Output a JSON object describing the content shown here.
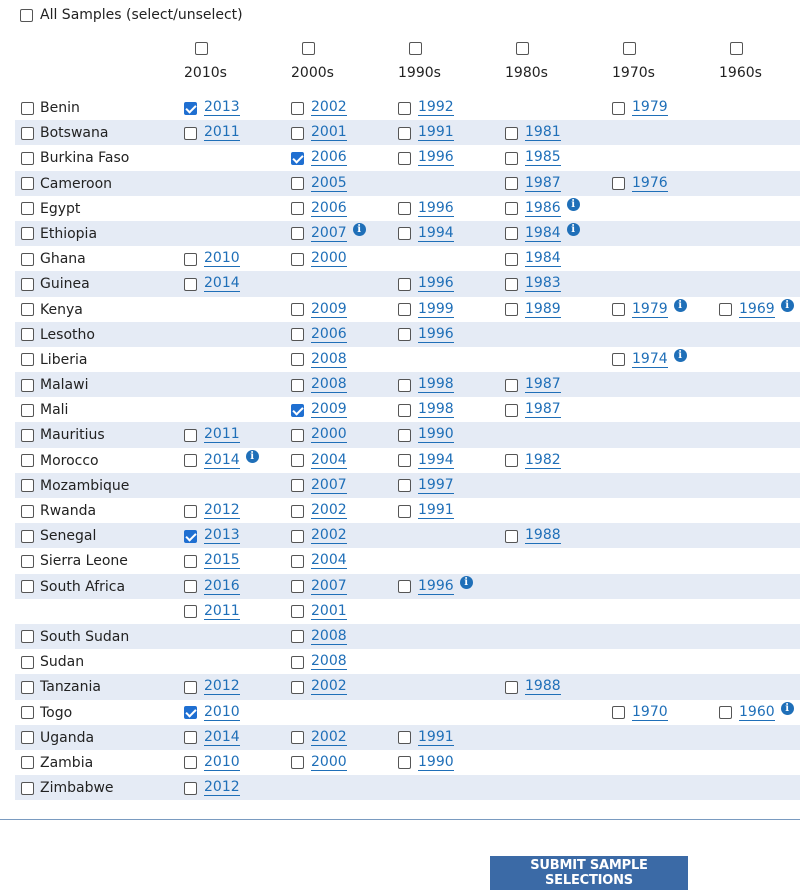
{
  "all_samples_label": "All Samples (select/unselect)",
  "decades": [
    "2010s",
    "2000s",
    "1990s",
    "1980s",
    "1970s",
    "1960s"
  ],
  "rows": [
    {
      "country": "Benin",
      "cells": [
        {
          "y": "2013",
          "c": true
        },
        {
          "y": "2002"
        },
        {
          "y": "1992"
        },
        null,
        {
          "y": "1979"
        },
        null
      ]
    },
    {
      "country": "Botswana",
      "cells": [
        {
          "y": "2011"
        },
        {
          "y": "2001"
        },
        {
          "y": "1991"
        },
        {
          "y": "1981"
        },
        null,
        null
      ]
    },
    {
      "country": "Burkina Faso",
      "cells": [
        null,
        {
          "y": "2006",
          "c": true
        },
        {
          "y": "1996"
        },
        {
          "y": "1985"
        },
        null,
        null
      ]
    },
    {
      "country": "Cameroon",
      "cells": [
        null,
        {
          "y": "2005"
        },
        null,
        {
          "y": "1987"
        },
        {
          "y": "1976"
        },
        null
      ]
    },
    {
      "country": "Egypt",
      "cells": [
        null,
        {
          "y": "2006"
        },
        {
          "y": "1996"
        },
        {
          "y": "1986",
          "i": true
        },
        null,
        null
      ]
    },
    {
      "country": "Ethiopia",
      "cells": [
        null,
        {
          "y": "2007",
          "i": true
        },
        {
          "y": "1994"
        },
        {
          "y": "1984",
          "i": true
        },
        null,
        null
      ]
    },
    {
      "country": "Ghana",
      "cells": [
        {
          "y": "2010"
        },
        {
          "y": "2000"
        },
        null,
        {
          "y": "1984"
        },
        null,
        null
      ]
    },
    {
      "country": "Guinea",
      "cells": [
        {
          "y": "2014"
        },
        null,
        {
          "y": "1996"
        },
        {
          "y": "1983"
        },
        null,
        null
      ]
    },
    {
      "country": "Kenya",
      "cells": [
        null,
        {
          "y": "2009"
        },
        {
          "y": "1999"
        },
        {
          "y": "1989"
        },
        {
          "y": "1979",
          "i": true
        },
        {
          "y": "1969",
          "i": true
        }
      ]
    },
    {
      "country": "Lesotho",
      "cells": [
        null,
        {
          "y": "2006"
        },
        {
          "y": "1996"
        },
        null,
        null,
        null
      ]
    },
    {
      "country": "Liberia",
      "cells": [
        null,
        {
          "y": "2008"
        },
        null,
        null,
        {
          "y": "1974",
          "i": true
        },
        null
      ]
    },
    {
      "country": "Malawi",
      "cells": [
        null,
        {
          "y": "2008"
        },
        {
          "y": "1998"
        },
        {
          "y": "1987"
        },
        null,
        null
      ]
    },
    {
      "country": "Mali",
      "cells": [
        null,
        {
          "y": "2009",
          "c": true
        },
        {
          "y": "1998"
        },
        {
          "y": "1987"
        },
        null,
        null
      ]
    },
    {
      "country": "Mauritius",
      "cells": [
        {
          "y": "2011"
        },
        {
          "y": "2000"
        },
        {
          "y": "1990"
        },
        null,
        null,
        null
      ]
    },
    {
      "country": "Morocco",
      "cells": [
        {
          "y": "2014",
          "i": true
        },
        {
          "y": "2004"
        },
        {
          "y": "1994"
        },
        {
          "y": "1982"
        },
        null,
        null
      ]
    },
    {
      "country": "Mozambique",
      "cells": [
        null,
        {
          "y": "2007"
        },
        {
          "y": "1997"
        },
        null,
        null,
        null
      ]
    },
    {
      "country": "Rwanda",
      "cells": [
        {
          "y": "2012"
        },
        {
          "y": "2002"
        },
        {
          "y": "1991"
        },
        null,
        null,
        null
      ]
    },
    {
      "country": "Senegal",
      "cells": [
        {
          "y": "2013",
          "c": true
        },
        {
          "y": "2002"
        },
        null,
        {
          "y": "1988"
        },
        null,
        null
      ]
    },
    {
      "country": "Sierra Leone",
      "cells": [
        {
          "y": "2015"
        },
        {
          "y": "2004"
        },
        null,
        null,
        null,
        null
      ]
    },
    {
      "country": "South Africa",
      "cells": [
        {
          "y": "2016"
        },
        {
          "y": "2007"
        },
        {
          "y": "1996",
          "i": true
        },
        null,
        null,
        null
      ]
    },
    {
      "country": "",
      "cells": [
        {
          "y": "2011"
        },
        {
          "y": "2001"
        },
        null,
        null,
        null,
        null
      ]
    },
    {
      "country": "South Sudan",
      "cells": [
        null,
        {
          "y": "2008"
        },
        null,
        null,
        null,
        null
      ]
    },
    {
      "country": "Sudan",
      "cells": [
        null,
        {
          "y": "2008"
        },
        null,
        null,
        null,
        null
      ]
    },
    {
      "country": "Tanzania",
      "cells": [
        {
          "y": "2012"
        },
        {
          "y": "2002"
        },
        null,
        {
          "y": "1988"
        },
        null,
        null
      ]
    },
    {
      "country": "Togo",
      "cells": [
        {
          "y": "2010",
          "c": true
        },
        null,
        null,
        null,
        {
          "y": "1970"
        },
        {
          "y": "1960",
          "i": true
        }
      ]
    },
    {
      "country": "Uganda",
      "cells": [
        {
          "y": "2014"
        },
        {
          "y": "2002"
        },
        {
          "y": "1991"
        },
        null,
        null,
        null
      ]
    },
    {
      "country": "Zambia",
      "cells": [
        {
          "y": "2010"
        },
        {
          "y": "2000"
        },
        {
          "y": "1990"
        },
        null,
        null,
        null
      ]
    },
    {
      "country": "Zimbabwe",
      "cells": [
        {
          "y": "2012"
        },
        null,
        null,
        null,
        null,
        null
      ]
    }
  ],
  "submit_label": "SUBMIT SAMPLE SELECTIONS",
  "colors": {
    "link": "#1f6fb8",
    "stripe": "#e5ebf5",
    "checked": "#1f6fd1",
    "button": "#3b6aa6"
  }
}
